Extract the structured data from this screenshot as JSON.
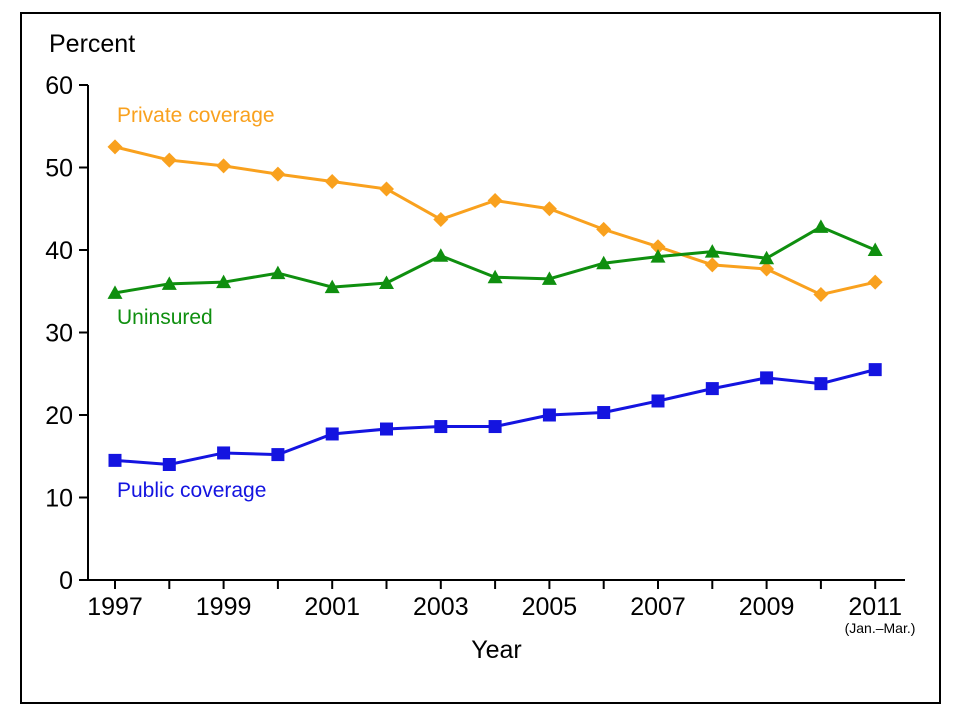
{
  "chart_data": {
    "type": "line",
    "title": "",
    "ylabel": "Percent",
    "xlabel": "Year",
    "x_axis_note": "(Jan.–Mar.)",
    "ylim": [
      0,
      60
    ],
    "yticks": [
      0,
      10,
      20,
      30,
      40,
      50,
      60
    ],
    "x": [
      1997,
      1998,
      1999,
      2000,
      2001,
      2002,
      2003,
      2004,
      2005,
      2006,
      2007,
      2008,
      2009,
      2010,
      2011
    ],
    "labeled_x_interval": 2,
    "grid": false,
    "legend_position": "inline-labels",
    "axis_color": "#000000",
    "series": [
      {
        "name": "Private coverage",
        "color": "#F9A11E",
        "marker": "diamond",
        "values": [
          52.5,
          50.9,
          50.2,
          49.2,
          48.3,
          47.4,
          43.7,
          46.0,
          45.0,
          42.5,
          40.4,
          38.2,
          37.7,
          34.6,
          36.1
        ]
      },
      {
        "name": "Uninsured",
        "color": "#0F8F0F",
        "marker": "triangle",
        "values": [
          34.8,
          35.9,
          36.1,
          37.2,
          35.5,
          36.0,
          39.3,
          36.7,
          36.5,
          38.4,
          39.2,
          39.8,
          39.0,
          42.8,
          40.0
        ]
      },
      {
        "name": "Public coverage",
        "color": "#1414E0",
        "marker": "square",
        "values": [
          14.5,
          14.0,
          15.4,
          15.2,
          17.7,
          18.3,
          18.6,
          18.6,
          20.0,
          20.3,
          21.7,
          23.2,
          24.5,
          23.8,
          25.5
        ]
      }
    ]
  }
}
